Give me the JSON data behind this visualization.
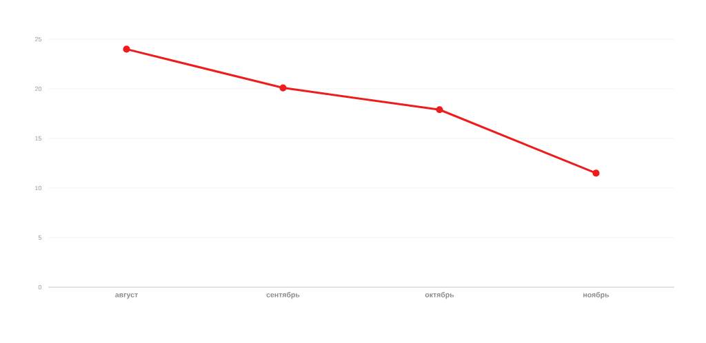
{
  "chart_data": {
    "type": "line",
    "categories": [
      "август",
      "сентябрь",
      "октябрь",
      "ноябрь"
    ],
    "series": [
      {
        "color": "#ee1c1c",
        "values": [
          24,
          20.1,
          17.9,
          11.5
        ]
      }
    ],
    "ylim": [
      0,
      25
    ],
    "yticks": [
      0,
      5,
      10,
      15,
      20,
      25
    ],
    "grid": "y",
    "legend": false,
    "marker": "circle",
    "line_style": "solid"
  }
}
